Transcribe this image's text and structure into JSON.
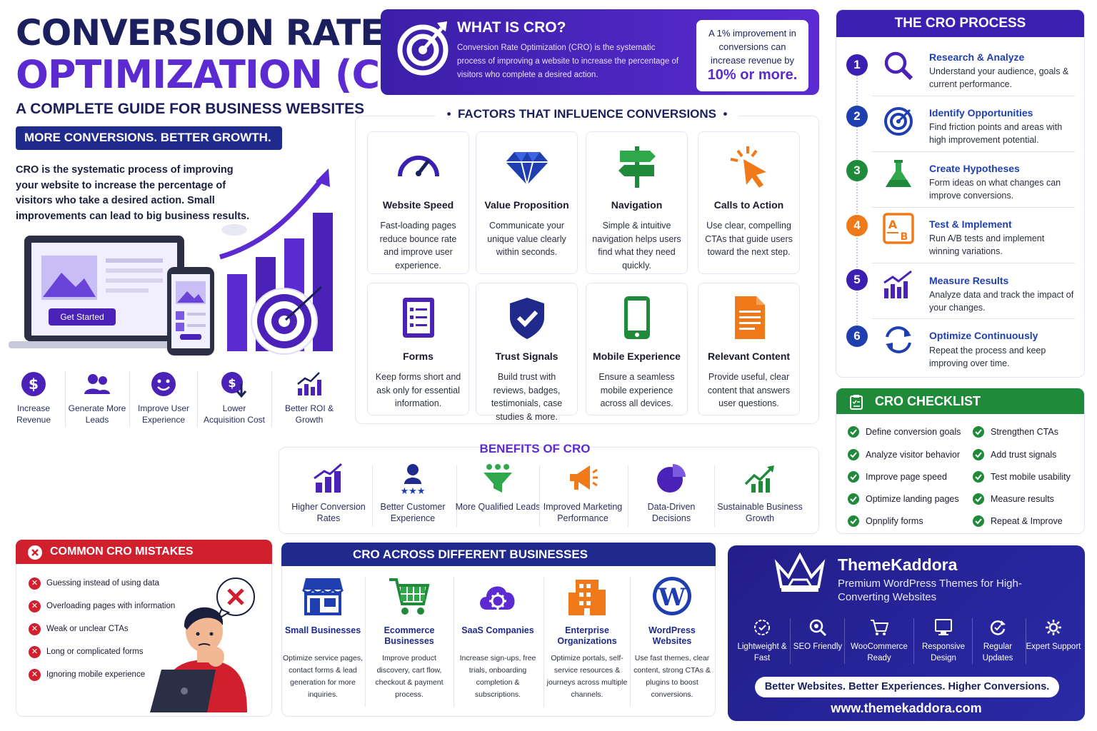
{
  "hero": {
    "title_line1": "CONVERSION RATE",
    "title_line2": "OPTIMIZATION (CRO)",
    "subtitle": "A COMPLETE GUIDE FOR BUSINESS WEBSITES",
    "banner": "MORE CONVERSIONS. BETTER GROWTH.",
    "description": "CRO is the systematic process of improving your website to increase the percentage of visitors who take a desired action. Small improvements can lead to big business results.",
    "cta_button": "Get Started"
  },
  "kpis": [
    {
      "label": "Increase Revenue",
      "icon": "dollar-icon"
    },
    {
      "label": "Generate More Leads",
      "icon": "people-icon"
    },
    {
      "label": "Improve User Experience",
      "icon": "smiley-icon"
    },
    {
      "label": "Lower Acquisition Cost",
      "icon": "cost-down-icon"
    },
    {
      "label": "Better ROI & Growth",
      "icon": "growth-chart-icon"
    }
  ],
  "what": {
    "title": "WHAT IS CRO?",
    "description": "Conversion Rate Optimization (CRO) is the systematic process of improving a website to increase the percentage of visitors who complete a desired action.",
    "note_text": "A 1% improvement in conversions can increase revenue by",
    "note_highlight": "10% or more."
  },
  "factors": {
    "title": "FACTORS THAT INFLUENCE CONVERSIONS",
    "items": [
      {
        "title": "Website Speed",
        "desc": "Fast-loading pages reduce bounce rate and improve user experience.",
        "icon": "speedometer-icon"
      },
      {
        "title": "Value Proposition",
        "desc": "Communicate your unique value clearly within seconds.",
        "icon": "diamond-icon"
      },
      {
        "title": "Navigation",
        "desc": "Simple & intuitive navigation helps users find what they need quickly.",
        "icon": "signpost-icon"
      },
      {
        "title": "Calls to Action",
        "desc": "Use clear, compelling CTAs that guide users toward the next step.",
        "icon": "cursor-click-icon"
      },
      {
        "title": "Forms",
        "desc": "Keep forms short and ask only for essential information.",
        "icon": "form-icon"
      },
      {
        "title": "Trust Signals",
        "desc": "Build trust with reviews, badges, testimonials, case studies & more.",
        "icon": "shield-check-icon"
      },
      {
        "title": "Mobile Experience",
        "desc": "Ensure a seamless mobile experience across all devices.",
        "icon": "mobile-icon"
      },
      {
        "title": "Relevant Content",
        "desc": "Provide useful, clear content that answers user questions.",
        "icon": "document-icon"
      }
    ]
  },
  "benefits": {
    "title": "BENEFITS OF CRO",
    "items": [
      {
        "label": "Higher Conversion Rates",
        "icon": "bar-growth-icon"
      },
      {
        "label": "Better Customer Experience",
        "icon": "customer-stars-icon"
      },
      {
        "label": "More Qualified Leads",
        "icon": "funnel-icon"
      },
      {
        "label": "Improved Marketing Performance",
        "icon": "megaphone-icon"
      },
      {
        "label": "Data-Driven Decisions",
        "icon": "pie-chart-icon"
      },
      {
        "label": "Sustainable Business Growth",
        "icon": "trend-up-icon"
      }
    ]
  },
  "process": {
    "title": "THE CRO PROCESS",
    "steps": [
      {
        "num": "1",
        "title": "Research & Analyze",
        "desc": "Understand your audience, goals & current performance.",
        "color": "#3a1fb0",
        "icon": "magnifier-icon"
      },
      {
        "num": "2",
        "title": "Identify Opportunities",
        "desc": "Find friction points and areas with high improvement potential.",
        "color": "#1f3fb0",
        "icon": "target-icon"
      },
      {
        "num": "3",
        "title": "Create Hypotheses",
        "desc": "Form ideas on what changes can improve conversions.",
        "color": "#1e8a3a",
        "icon": "flask-icon"
      },
      {
        "num": "4",
        "title": "Test & Implement",
        "desc": "Run A/B tests and implement winning variations.",
        "color": "#f07a1a",
        "icon": "ab-test-icon"
      },
      {
        "num": "5",
        "title": "Measure Results",
        "desc": "Analyze data and track the impact of your changes.",
        "color": "#3a1fb0",
        "icon": "chart-icon"
      },
      {
        "num": "6",
        "title": "Optimize Continuously",
        "desc": "Repeat the process and keep improving over time.",
        "color": "#1f3fb0",
        "icon": "refresh-icon"
      }
    ]
  },
  "checklist": {
    "title": "CRO CHECKLIST",
    "left": [
      "Define conversion goals",
      "Analyze visitor behavior",
      "Improve page speed",
      "Optimize landing pages",
      "Opnplify forms"
    ],
    "right": [
      "Strengthen CTAs",
      "Add trust signals",
      "Test mobile usability",
      "Measure results",
      "Repeat & Improve"
    ]
  },
  "mistakes": {
    "title": "COMMON CRO MISTAKES",
    "items": [
      "Guessing instead of using data",
      "Overloading pages with information",
      "Weak or unclear CTAs",
      "Long or complicated forms",
      "Ignoring mobile experience"
    ]
  },
  "businesses": {
    "title": "CRO ACROSS DIFFERENT BUSINESSES",
    "items": [
      {
        "title": "Small Businesses",
        "desc": "Optimize service pages, contact forms & lead generation for more inquiries.",
        "icon": "storefront-icon"
      },
      {
        "title": "Ecommerce Businesses",
        "desc": "Improve product discovery, cart flow, checkout & payment process.",
        "icon": "cart-icon"
      },
      {
        "title": "SaaS Companies",
        "desc": "Increase sign-ups, free trials, onboarding completion & subscriptions.",
        "icon": "cloud-gear-icon"
      },
      {
        "title": "Enterprise Organizations",
        "desc": "Optimize portals, self-service resources & journeys across multiple channels.",
        "icon": "building-icon"
      },
      {
        "title": "WordPress Websites",
        "desc": "Use fast themes, clear content, strong CTAs & plugins to boost conversions.",
        "icon": "wordpress-icon"
      }
    ]
  },
  "brand": {
    "name": "ThemeKaddora",
    "tagline": "Premium WordPress Themes for High-Converting Websites",
    "features": [
      {
        "label": "Lightweight & Fast",
        "icon": "speed-gear-icon"
      },
      {
        "label": "SEO Friendly",
        "icon": "seo-search-icon"
      },
      {
        "label": "WooCommerce Ready",
        "icon": "cart-icon"
      },
      {
        "label": "Responsive Design",
        "icon": "monitor-icon"
      },
      {
        "label": "Regular Updates",
        "icon": "update-icon"
      },
      {
        "label": "Expert Support",
        "icon": "support-gear-icon"
      }
    ],
    "slogan": "Better Websites. Better Experiences. Higher Conversions.",
    "url": "www.themekaddora.com"
  },
  "colors": {
    "navy": "#1b1f5e",
    "purple": "#5b2bd1",
    "blue": "#1f3fb0",
    "green": "#1e8a3a",
    "red": "#d0202e",
    "orange": "#f07a1a"
  }
}
